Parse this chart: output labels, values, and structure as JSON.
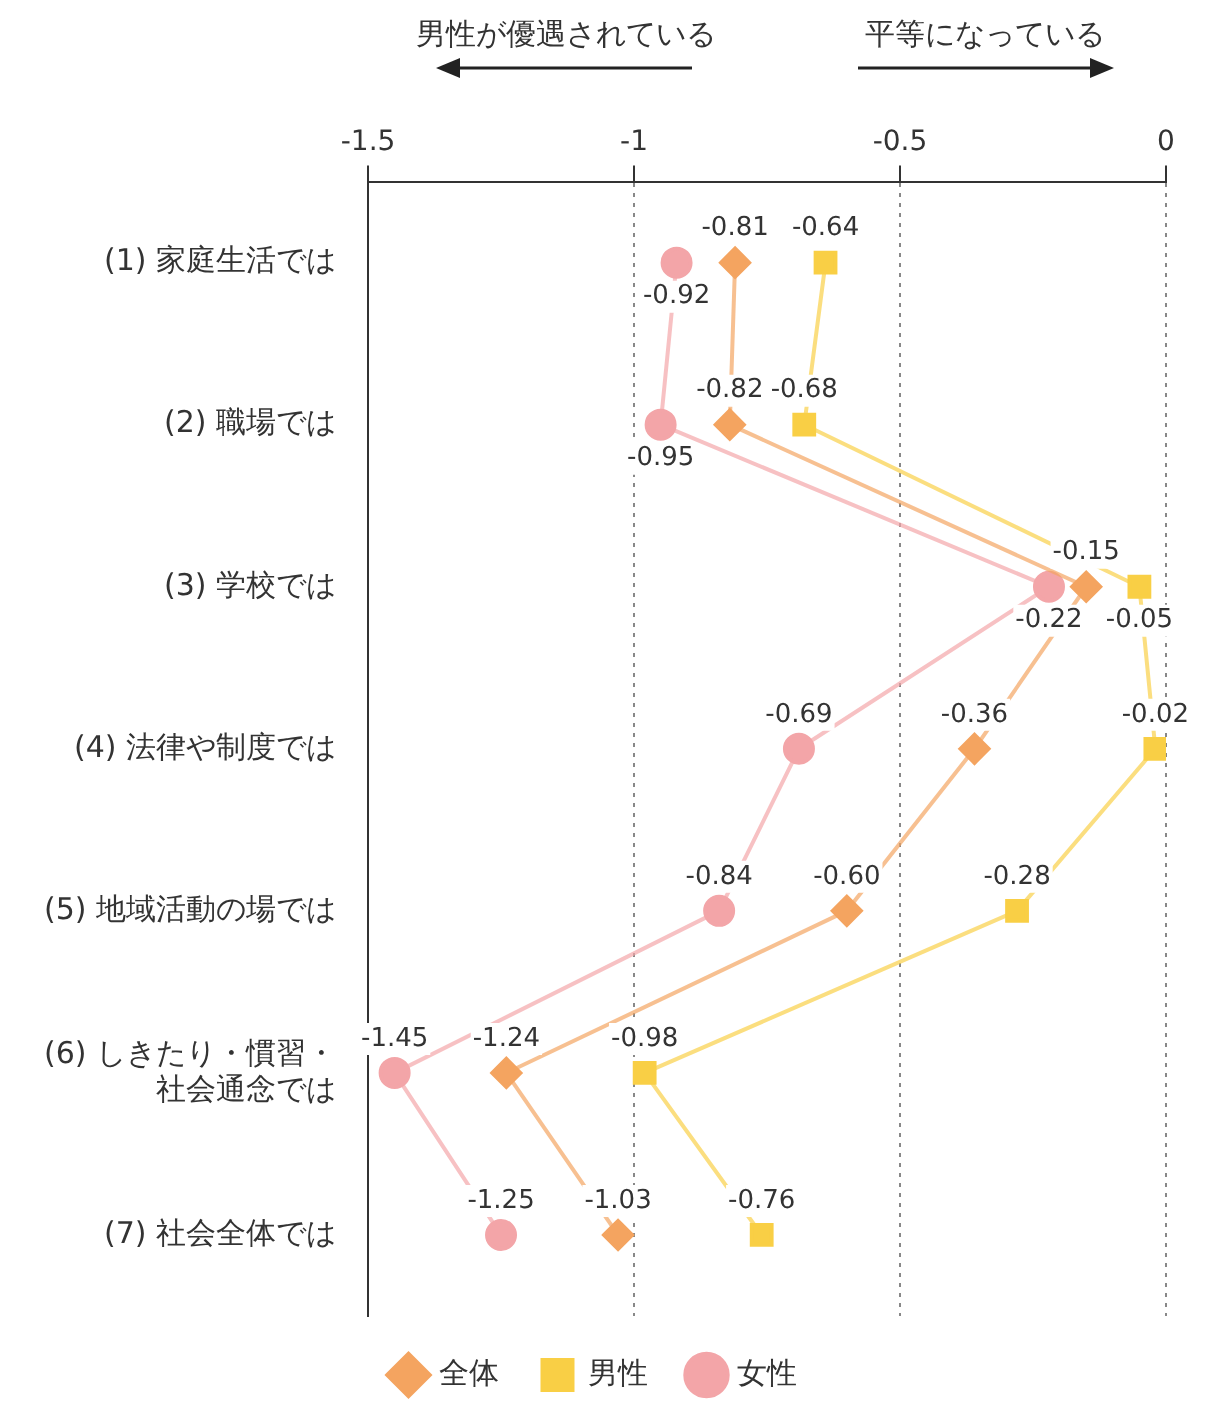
{
  "chart_data": {
    "type": "line",
    "orientation": "horizontal",
    "categories": [
      "(1) 家庭生活では",
      "(2) 職場では",
      "(3) 学校では",
      "(4) 法律や制度では",
      "(5) 地域活動の場では",
      "(6) しきたり・慣習・社会通念では",
      "(7) 社会全体では"
    ],
    "series": [
      {
        "name": "全体",
        "color": "#f4a460",
        "marker": "diamond",
        "values": [
          -0.81,
          -0.82,
          -0.15,
          -0.36,
          -0.6,
          -1.24,
          -1.03
        ],
        "value_labels": [
          "-0.81",
          "-0.82",
          "-0.15",
          "-0.36",
          "-0.60",
          "-1.24",
          "-1.03"
        ]
      },
      {
        "name": "男性",
        "color": "#f9cf45",
        "marker": "square",
        "values": [
          -0.64,
          -0.68,
          -0.05,
          -0.02,
          -0.28,
          -0.98,
          -0.76
        ],
        "value_labels": [
          "-0.64",
          "-0.68",
          "-0.05",
          "-0.02",
          "-0.28",
          "-0.98",
          "-0.76"
        ]
      },
      {
        "name": "女性",
        "color": "#f3a5a8",
        "marker": "circle",
        "values": [
          -0.92,
          -0.95,
          -0.22,
          -0.69,
          -0.84,
          -1.45,
          -1.25
        ],
        "value_labels": [
          "-0.92",
          "-0.95",
          "-0.22",
          "-0.69",
          "-0.84",
          "-1.45",
          "-1.25"
        ]
      }
    ],
    "xlim": [
      -1.5,
      0
    ],
    "xticks": [
      -1.5,
      -1,
      -0.5,
      0
    ],
    "grid": "x",
    "legend": "bottom",
    "annotations": [
      "男性が優遇されている",
      "平等になっている"
    ]
  }
}
